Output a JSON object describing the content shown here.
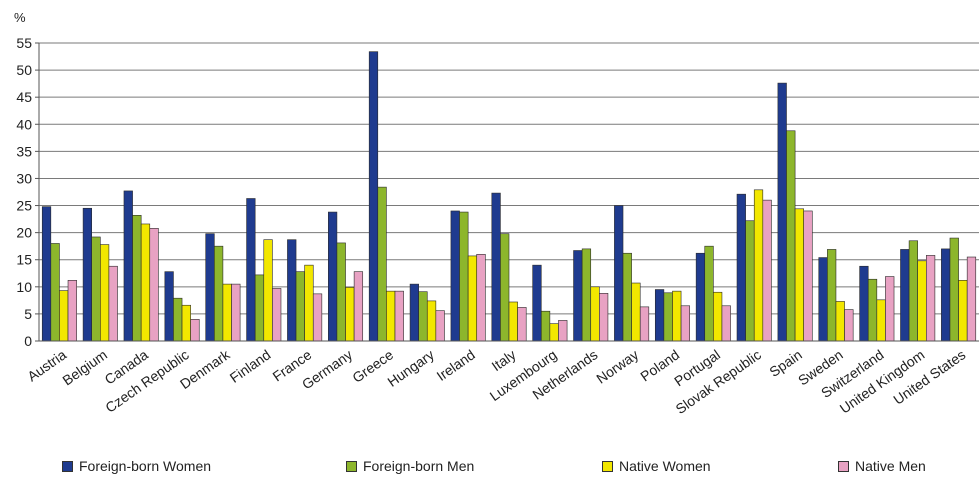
{
  "chart_data": {
    "type": "bar",
    "yunit": "%",
    "ylim": [
      0,
      55
    ],
    "yticks": [
      0,
      5,
      10,
      15,
      20,
      25,
      30,
      35,
      40,
      45,
      50,
      55
    ],
    "grid": true,
    "legend_position": "bottom",
    "categories": [
      "Austria",
      "Belgium",
      "Canada",
      "Czech Republic",
      "Denmark",
      "Finland",
      "France",
      "Germany",
      "Greece",
      "Hungary",
      "Ireland",
      "Italy",
      "Luxembourg",
      "Netherlands",
      "Norway",
      "Poland",
      "Portugal",
      "Slovak Republic",
      "Spain",
      "Sweden",
      "Switzerland",
      "United Kingdom",
      "United States"
    ],
    "series": [
      {
        "name": "Foreign-born Women",
        "color": "#1f3b8f",
        "values": [
          24.8,
          24.5,
          27.7,
          12.8,
          19.8,
          26.3,
          18.7,
          23.8,
          53.4,
          10.5,
          24.0,
          27.3,
          14.0,
          16.7,
          25.0,
          9.5,
          16.2,
          27.1,
          47.6,
          15.4,
          13.8,
          16.9,
          17.0
        ]
      },
      {
        "name": "Foreign-born Men",
        "color": "#8db62c",
        "values": [
          18.0,
          19.2,
          23.2,
          7.9,
          17.5,
          12.2,
          12.8,
          18.1,
          28.4,
          9.1,
          23.8,
          19.8,
          5.5,
          17.0,
          16.2,
          8.9,
          17.5,
          22.2,
          38.8,
          16.9,
          11.4,
          18.5,
          19.0
        ]
      },
      {
        "name": "Native Women",
        "color": "#f2e700",
        "values": [
          9.3,
          17.8,
          21.6,
          6.6,
          10.5,
          18.7,
          14.0,
          9.9,
          9.2,
          7.4,
          15.7,
          7.2,
          3.2,
          10.0,
          10.7,
          9.2,
          9.0,
          27.9,
          24.4,
          7.3,
          7.6,
          14.8,
          11.2
        ]
      },
      {
        "name": "Native Men",
        "color": "#e8a2c3",
        "values": [
          11.2,
          13.8,
          20.8,
          4.0,
          10.5,
          9.7,
          8.7,
          12.8,
          9.2,
          5.6,
          16.0,
          6.2,
          3.8,
          8.8,
          6.3,
          6.5,
          6.5,
          26.0,
          24.0,
          5.8,
          11.9,
          15.8,
          15.5
        ]
      }
    ]
  }
}
